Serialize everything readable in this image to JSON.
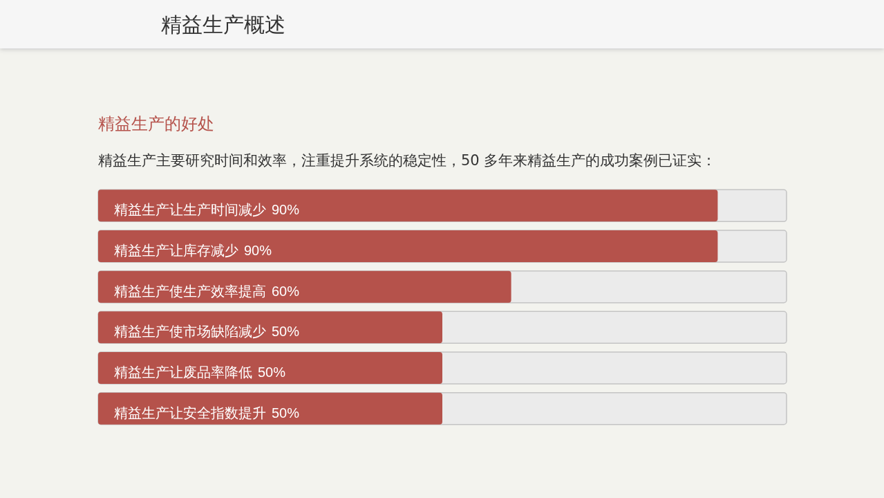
{
  "chart_data": {
    "type": "bar",
    "orientation": "horizontal",
    "title": "精益生产概述",
    "subtitle": "精益生产的好处",
    "annotations": [
      "精益生产主要研究时间和效率，注重提升系统的稳定性，50 多年来精益生产的成功案例已证实："
    ],
    "categories": [
      "精益生产让生产时间减少",
      "精益生产让库存减少",
      "精益生产使生产效率提高",
      "精益生产使市场缺陷减少",
      "精益生产让废品率降低",
      "精益生产让安全指数提升"
    ],
    "values": [
      90,
      90,
      60,
      50,
      50,
      50
    ],
    "value_labels": [
      "90%",
      "90%",
      "60%",
      "50%",
      "50%",
      "50%"
    ],
    "color": "#b5524b"
  }
}
